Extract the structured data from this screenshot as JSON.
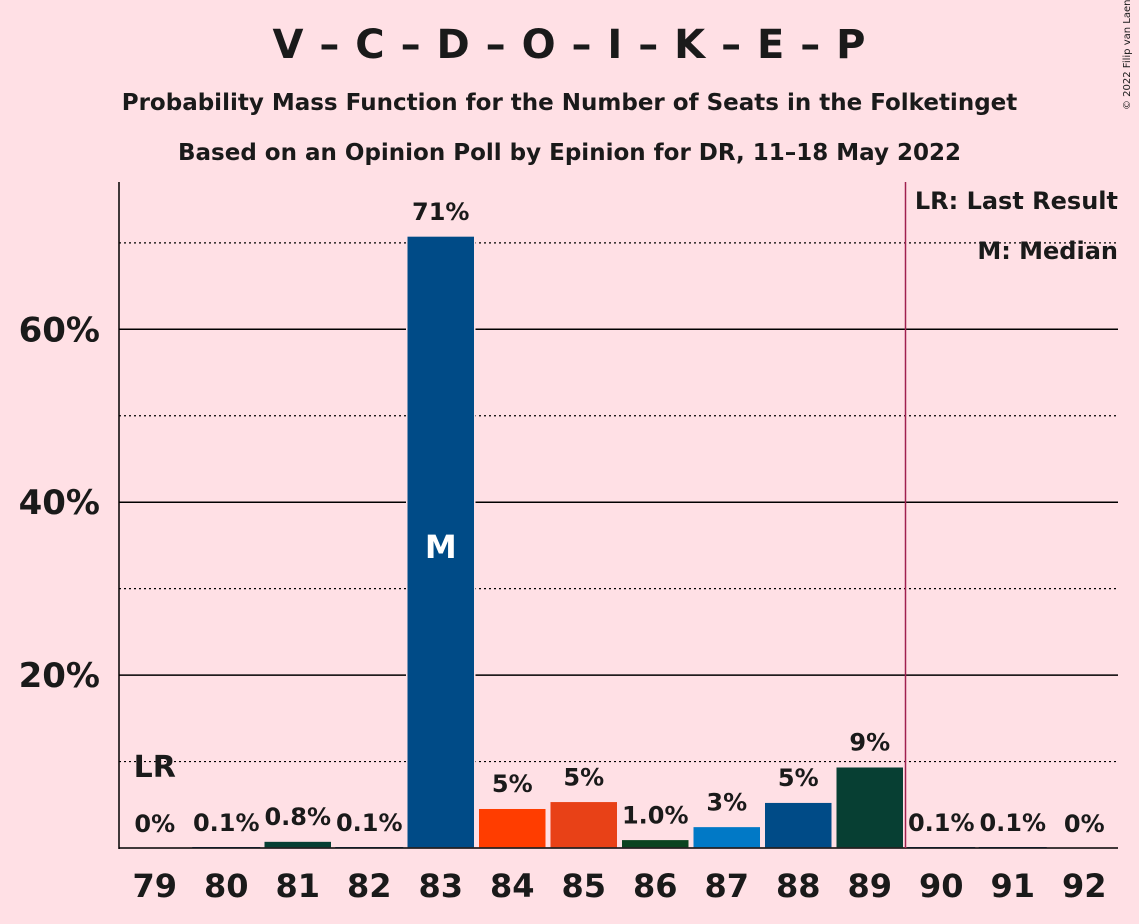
{
  "header": {
    "title": "V – C – D – O – I – K – E – P",
    "subtitle1": "Probability Mass Function for the Number of Seats in the Folketinget",
    "subtitle2": "Based on an Opinion Poll by Epinion for DR, 11–18 May 2022"
  },
  "copyright": "© 2022 Filip van Laenen",
  "legend": {
    "last_result": "LR: Last Result",
    "median": "M: Median"
  },
  "chart_data": {
    "type": "bar",
    "categories": [
      "79",
      "80",
      "81",
      "82",
      "83",
      "84",
      "85",
      "86",
      "87",
      "88",
      "89",
      "90",
      "91",
      "92"
    ],
    "values": [
      0,
      0.1,
      0.8,
      0.1,
      70.8,
      4.6,
      5.4,
      1.0,
      2.5,
      5.3,
      9.4,
      0.1,
      0.1,
      0
    ],
    "data_labels": [
      "0%",
      "0.1%",
      "0.8%",
      "0.1%",
      "71%",
      "5%",
      "5%",
      "1.0%",
      "3%",
      "5%",
      "9%",
      "0.1%",
      "0.1%",
      "0%"
    ],
    "bar_colors": [
      "#004B87",
      "#004B87",
      "#073F33",
      "#004B87",
      "#004B87",
      "#FF3D00",
      "#E84117",
      "#0B4320",
      "#0179C6",
      "#004B87",
      "#073F33",
      "#004B87",
      "#004B87",
      "#004B87"
    ],
    "ylim": [
      0,
      75
    ],
    "y_major_ticks": [
      20,
      40,
      60
    ],
    "y_tick_labels": [
      "20%",
      "40%",
      "60%"
    ],
    "y_minor_gridlines": [
      10,
      30,
      50,
      70
    ],
    "last_result_seat": "79",
    "last_result_marker": "LR",
    "median_seat": "83",
    "median_marker": "M",
    "majority_line_after": "89",
    "colors": {
      "majority_line": "#A0204F",
      "gridline": "#000000",
      "background": "#FFE0E5"
    }
  }
}
